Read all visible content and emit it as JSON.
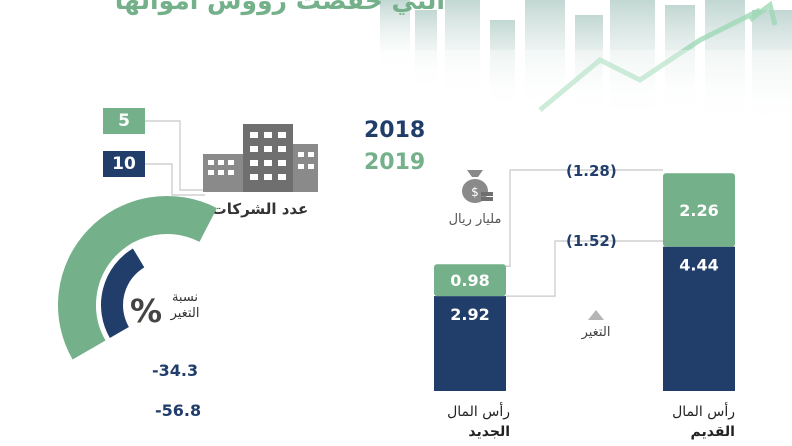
{
  "header": {
    "title": "التي خفضت رؤوس أموالها"
  },
  "legend": {
    "year_2018": "2018",
    "year_2019": "2019"
  },
  "companies": {
    "label": "عدد الشركات",
    "count_2019": "5",
    "count_2018": "10"
  },
  "capital": {
    "unit": "مليار ريال",
    "change_label": "التغير",
    "diff_2019": "(1.28)",
    "diff_2018": "(1.52)",
    "new_label_line1": "رأس المال",
    "new_label_line2": "الجديد",
    "old_label_line1": "رأس المال",
    "old_label_line2": "القديم"
  },
  "percent_change": {
    "title_line1": "نسبة",
    "title_line2": "التغير",
    "symbol": "%",
    "value_2018": "-34.3",
    "value_2019": "-56.8"
  },
  "colors": {
    "2018": "#213e6b",
    "2019": "#74b08a"
  },
  "chart_data": [
    {
      "type": "bar",
      "categories": [
        "رأس المال الجديد",
        "رأس المال القديم"
      ],
      "series": [
        {
          "name": "2018",
          "values": [
            2.92,
            4.44
          ]
        },
        {
          "name": "2019",
          "values": [
            0.98,
            2.26
          ]
        }
      ],
      "ylabel": "مليار ريال",
      "annotations": [
        "(1.28)",
        "(1.52)"
      ]
    },
    {
      "type": "pie",
      "categories": [
        "2018",
        "2019"
      ],
      "values": [
        -34.3,
        -56.8
      ],
      "labels": [
        "-34.3",
        "-56.8"
      ]
    },
    {
      "type": "table",
      "categories": [
        "2019",
        "2018"
      ],
      "values": [
        5,
        10
      ]
    }
  ]
}
